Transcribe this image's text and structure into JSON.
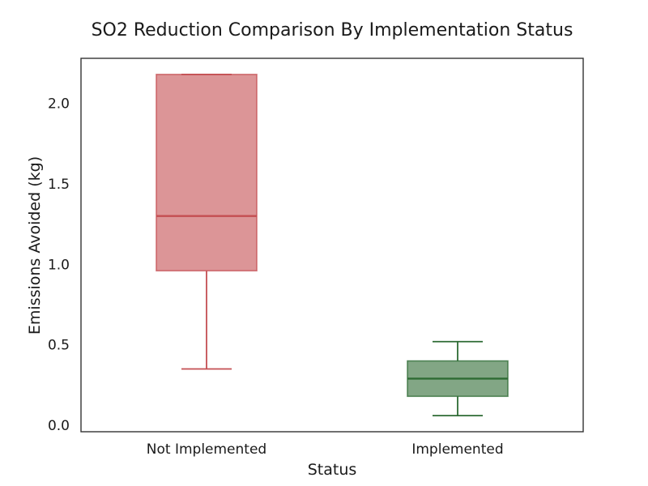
{
  "chart_data": {
    "type": "box",
    "title": "SO2 Reduction Comparison By Implementation Status",
    "xlabel": "Status",
    "ylabel": "Emissions Avoided (kg)",
    "ylim": [
      -0.04,
      2.28
    ],
    "yticks": [
      0.0,
      0.5,
      1.0,
      1.5,
      2.0
    ],
    "ytick_labels": [
      "0.0",
      "0.5",
      "1.0",
      "1.5",
      "2.0"
    ],
    "grid": false,
    "categories": [
      "Not Implemented",
      "Implemented"
    ],
    "boxes": [
      {
        "category": "Not Implemented",
        "whisker_low": 0.35,
        "q1": 0.96,
        "median": 1.3,
        "q3": 2.18,
        "whisker_high": 2.18,
        "color": "#c44e52"
      },
      {
        "category": "Implemented",
        "whisker_low": 0.06,
        "q1": 0.18,
        "median": 0.29,
        "q3": 0.4,
        "whisker_high": 0.52,
        "color": "#2e6b34"
      }
    ],
    "colors": {
      "not_implemented": "#c44e52",
      "implemented": "#2e6b34"
    }
  }
}
